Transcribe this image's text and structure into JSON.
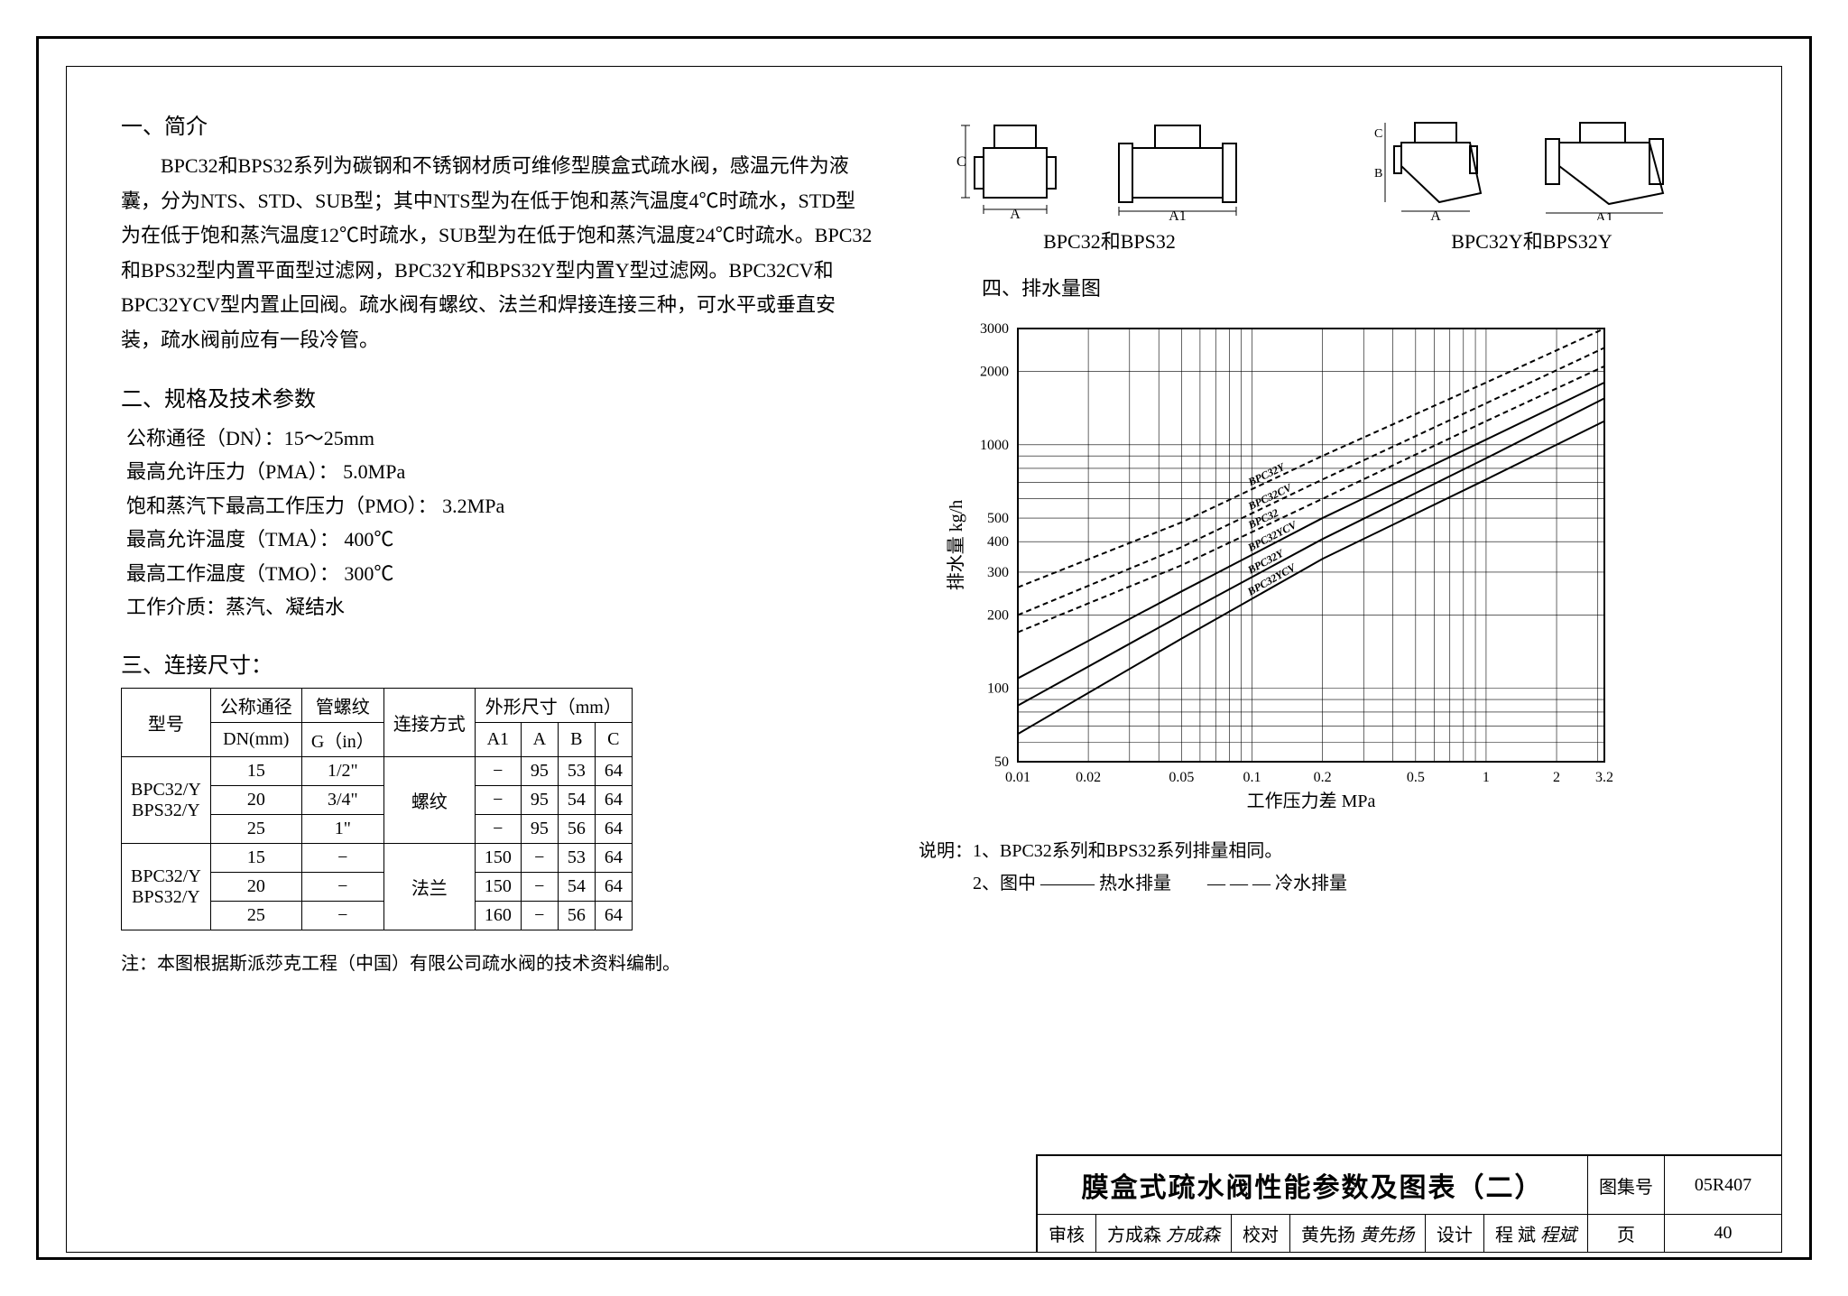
{
  "section1": {
    "heading": "一、简介",
    "body": "BPC32和BPS32系列为碳钢和不锈钢材质可维修型膜盒式疏水阀，感温元件为液囊，分为NTS、STD、SUB型；其中NTS型为在低于饱和蒸汽温度4℃时疏水，STD型为在低于饱和蒸汽温度12℃时疏水，SUB型为在低于饱和蒸汽温度24℃时疏水。BPC32和BPS32型内置平面型过滤网，BPC32Y和BPS32Y型内置Y型过滤网。BPC32CV和BPC32YCV型内置止回阀。疏水阀有螺纹、法兰和焊接连接三种，可水平或垂直安装，疏水阀前应有一段冷管。"
  },
  "section2": {
    "heading": "二、规格及技术参数",
    "lines": [
      "公称通径（DN）：15～25mm",
      "最高允许压力（PMA）：  5.0MPa",
      "饱和蒸汽下最高工作压力（PMO）：  3.2MPa",
      "最高允许温度（TMA）：  400℃",
      "最高工作温度（TMO）：  300℃",
      "工作介质：蒸汽、凝结水"
    ]
  },
  "section3": {
    "heading": "三、连接尺寸：",
    "table": {
      "header_row1": [
        "型号",
        "公称通径",
        "管螺纹",
        "连接方式",
        "外形尺寸（mm）"
      ],
      "header_row2_left": [
        "DN(mm)",
        "G（in）"
      ],
      "header_row2_dims": [
        "A1",
        "A",
        "B",
        "C"
      ],
      "groups": [
        {
          "model": "BPC32/Y\nBPS32/Y",
          "conn": "螺纹",
          "rows": [
            [
              "15",
              "1/2\"",
              "−",
              "95",
              "53",
              "64"
            ],
            [
              "20",
              "3/4\"",
              "−",
              "95",
              "54",
              "64"
            ],
            [
              "25",
              "1\"",
              "−",
              "95",
              "56",
              "64"
            ]
          ]
        },
        {
          "model": "BPC32/Y\nBPS32/Y",
          "conn": "法兰",
          "rows": [
            [
              "15",
              "−",
              "150",
              "−",
              "53",
              "64"
            ],
            [
              "20",
              "−",
              "150",
              "−",
              "54",
              "64"
            ],
            [
              "25",
              "−",
              "160",
              "−",
              "56",
              "64"
            ]
          ]
        }
      ]
    },
    "footnote": "注：本图根据斯派莎克工程（中国）有限公司疏水阀的技术资料编制。"
  },
  "drawings": {
    "left_label": "BPC32和BPS32",
    "right_label": "BPC32Y和BPS32Y",
    "dim_labels": {
      "A": "A",
      "A1": "A1",
      "B": "B",
      "C": "C"
    }
  },
  "chart": {
    "section_heading": "四、排水量图",
    "type": "log-log-line",
    "xlabel": "工作压力差  MPa",
    "ylabel": "排水量  kg/h",
    "x_ticks": [
      0.01,
      0.02,
      0.05,
      0.1,
      0.2,
      0.5,
      1.0,
      2.0,
      3.2
    ],
    "y_ticks": [
      50,
      100,
      200,
      300,
      400,
      500,
      1000,
      2000,
      3000
    ],
    "xlim": [
      0.01,
      3.2
    ],
    "ylim": [
      50,
      3000
    ],
    "background_color": "#ffffff",
    "grid_color": "#000000",
    "grid_minor": true,
    "line_width": 2,
    "tick_fontsize": 16,
    "label_fontsize": 20,
    "series": [
      {
        "name": "BPC32Y",
        "dash": "6,4",
        "points": [
          [
            0.01,
            260
          ],
          [
            0.05,
            480
          ],
          [
            0.2,
            900
          ],
          [
            1.0,
            1800
          ],
          [
            3.2,
            3000
          ]
        ]
      },
      {
        "name": "BPC32CV",
        "dash": "6,4",
        "points": [
          [
            0.01,
            200
          ],
          [
            0.05,
            380
          ],
          [
            0.2,
            720
          ],
          [
            1.0,
            1480
          ],
          [
            3.2,
            2500
          ]
        ]
      },
      {
        "name": "BPC32",
        "dash": "6,4",
        "points": [
          [
            0.01,
            170
          ],
          [
            0.05,
            320
          ],
          [
            0.2,
            600
          ],
          [
            1.0,
            1250
          ],
          [
            3.2,
            2100
          ]
        ]
      },
      {
        "name": "BPC32YCV",
        "dash": "none",
        "points": [
          [
            0.01,
            110
          ],
          [
            0.05,
            250
          ],
          [
            0.2,
            500
          ],
          [
            1.0,
            1050
          ],
          [
            3.2,
            1800
          ]
        ]
      },
      {
        "name": "BPC32Y",
        "dash": "none",
        "points": [
          [
            0.01,
            85
          ],
          [
            0.05,
            200
          ],
          [
            0.2,
            410
          ],
          [
            1.0,
            880
          ],
          [
            3.2,
            1550
          ]
        ]
      },
      {
        "name": "BPC32YCV",
        "dash": "none",
        "points": [
          [
            0.01,
            65
          ],
          [
            0.05,
            160
          ],
          [
            0.2,
            340
          ],
          [
            1.0,
            720
          ],
          [
            3.2,
            1250
          ]
        ]
      }
    ],
    "series_label_fontsize": 12,
    "legend_lines": [
      "说明：1、BPC32系列和BPS32系列排量相同。",
      "　　　2、图中  ———  热水排量　　— — —  冷水排量"
    ]
  },
  "titleblock": {
    "title": "膜盒式疏水阀性能参数及图表（二）",
    "atlas_label": "图集号",
    "atlas_no": "05R407",
    "page_label": "页",
    "page_no": "40",
    "review_label": "审核",
    "reviewer": "方成森",
    "reviewer_sig": "方成森",
    "check_label": "校对",
    "checker": "黄先扬",
    "checker_sig": "黄先扬",
    "design_label": "设计",
    "designer": "程 斌",
    "designer_sig": "程斌"
  }
}
